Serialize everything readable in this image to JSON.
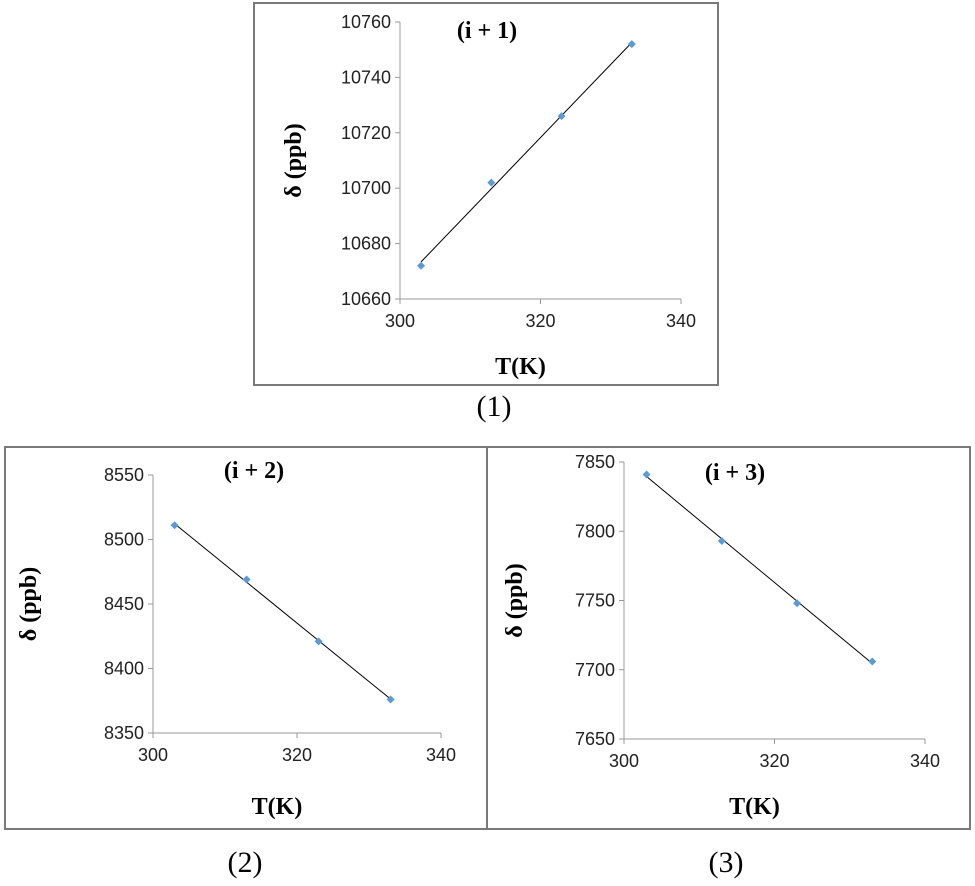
{
  "chart_data": [
    {
      "type": "scatter",
      "title": "(i + 1)",
      "xlabel": "T(K)",
      "ylabel": "δ (ppb)",
      "xlim": [
        300,
        340
      ],
      "ylim": [
        10660,
        10760
      ],
      "xticks": [
        300,
        320,
        340
      ],
      "yticks": [
        10660,
        10680,
        10700,
        10720,
        10740,
        10760
      ],
      "grid": false,
      "trendline": "linear",
      "point_color": "#5b9bd5",
      "line_color": "#000000",
      "x": [
        303,
        313,
        323,
        333
      ],
      "y": [
        10672,
        10702,
        10726,
        10752
      ]
    },
    {
      "type": "scatter",
      "title": "(i + 2)",
      "xlabel": "T(K)",
      "ylabel": "δ (ppb)",
      "xlim": [
        300,
        340
      ],
      "ylim": [
        8350,
        8550
      ],
      "xticks": [
        300,
        320,
        340
      ],
      "yticks": [
        8350,
        8400,
        8450,
        8500,
        8550
      ],
      "grid": false,
      "trendline": "linear",
      "point_color": "#5b9bd5",
      "line_color": "#000000",
      "x": [
        303,
        313,
        323,
        333
      ],
      "y": [
        8511,
        8469,
        8421,
        8376
      ]
    },
    {
      "type": "scatter",
      "title": "(i + 3)",
      "xlabel": "T(K)",
      "ylabel": "δ (ppb)",
      "xlim": [
        300,
        340
      ],
      "ylim": [
        7650,
        7850
      ],
      "xticks": [
        300,
        320,
        340
      ],
      "yticks": [
        7650,
        7700,
        7750,
        7800,
        7850
      ],
      "grid": false,
      "trendline": "linear",
      "point_color": "#5b9bd5",
      "line_color": "#000000",
      "x": [
        303,
        313,
        323,
        333
      ],
      "y": [
        7841,
        7793,
        7748,
        7706
      ]
    }
  ],
  "captions": [
    "(1)",
    "(2)",
    "(3)"
  ]
}
